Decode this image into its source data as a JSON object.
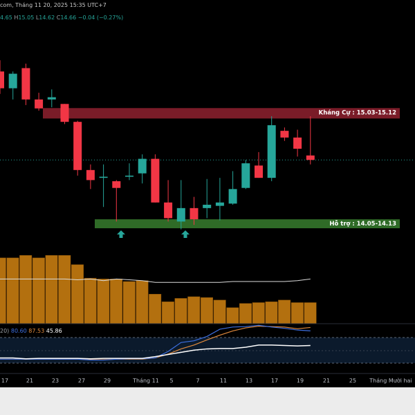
{
  "header": {
    "source_title": "com, Tháng 11 20, 2025 15:35 UTC+7",
    "ohlc": [
      {
        "text": "4.65",
        "color": "#26a69a"
      },
      {
        "text": "H",
        "color": "#9aa0a6"
      },
      {
        "text": "15.05",
        "color": "#26a69a"
      },
      {
        "text": "L",
        "color": "#9aa0a6"
      },
      {
        "text": "14.62",
        "color": "#26a69a"
      },
      {
        "text": "C",
        "color": "#9aa0a6"
      },
      {
        "text": "14.66",
        "color": "#26a69a"
      },
      {
        "text": "−0.04 (−0.27%)",
        "color": "#26a69a"
      }
    ]
  },
  "zones": {
    "resistance": {
      "label": "Kháng Cự : 15.03-15.12",
      "low": 15.03,
      "high": 15.12
    },
    "support": {
      "label": "Hỗ trợ : 14.05-14.13",
      "low": 14.05,
      "high": 14.13
    }
  },
  "current_price": 14.66,
  "indicator": {
    "legend": [
      {
        "text": "20)",
        "color": "#9aa0a6"
      },
      {
        "text": "80.60",
        "color": "#3d6fe0"
      },
      {
        "text": "87.53",
        "color": "#e08a3d"
      },
      {
        "text": "45.86",
        "color": "#ffffff"
      }
    ],
    "upper_band": 80,
    "lower_band": 20
  },
  "x_axis_labels": [
    "17",
    "21",
    "23",
    "27",
    "29",
    "Tháng 11",
    "5",
    "7",
    "11",
    "13",
    "17",
    "19",
    "21",
    "25",
    "Tháng Mười hai"
  ],
  "chart_data": {
    "type": "candlestick",
    "candles": [
      {
        "o": 15.45,
        "h": 15.55,
        "l": 15.25,
        "c": 15.3
      },
      {
        "o": 15.3,
        "h": 15.45,
        "l": 15.2,
        "c": 15.43
      },
      {
        "o": 15.48,
        "h": 15.52,
        "l": 15.15,
        "c": 15.2
      },
      {
        "o": 15.2,
        "h": 15.26,
        "l": 15.1,
        "c": 15.12
      },
      {
        "o": 15.2,
        "h": 15.29,
        "l": 15.13,
        "c": 15.22
      },
      {
        "o": 15.16,
        "h": 15.16,
        "l": 14.98,
        "c": 15.0
      },
      {
        "o": 15.0,
        "h": 15.01,
        "l": 14.52,
        "c": 14.57
      },
      {
        "o": 14.57,
        "h": 14.62,
        "l": 14.4,
        "c": 14.48
      },
      {
        "o": 14.5,
        "h": 14.62,
        "l": 14.24,
        "c": 14.51
      },
      {
        "o": 14.47,
        "h": 14.48,
        "l": 14.11,
        "c": 14.41
      },
      {
        "o": 14.51,
        "h": 14.63,
        "l": 14.48,
        "c": 14.52
      },
      {
        "o": 14.54,
        "h": 14.71,
        "l": 14.45,
        "c": 14.67
      },
      {
        "o": 14.67,
        "h": 14.71,
        "l": 14.28,
        "c": 14.28
      },
      {
        "o": 14.28,
        "h": 14.48,
        "l": 14.11,
        "c": 14.14
      },
      {
        "o": 14.11,
        "h": 14.48,
        "l": 14.04,
        "c": 14.23
      },
      {
        "o": 14.23,
        "h": 14.33,
        "l": 14.08,
        "c": 14.13
      },
      {
        "o": 14.23,
        "h": 14.49,
        "l": 14.14,
        "c": 14.26
      },
      {
        "o": 14.25,
        "h": 14.5,
        "l": 14.12,
        "c": 14.28
      },
      {
        "o": 14.27,
        "h": 14.56,
        "l": 14.26,
        "c": 14.4
      },
      {
        "o": 14.41,
        "h": 14.66,
        "l": 14.4,
        "c": 14.63
      },
      {
        "o": 14.61,
        "h": 14.73,
        "l": 14.5,
        "c": 14.5
      },
      {
        "o": 14.5,
        "h": 15.05,
        "l": 14.47,
        "c": 14.97
      },
      {
        "o": 14.92,
        "h": 14.95,
        "l": 14.83,
        "c": 14.86
      },
      {
        "o": 14.86,
        "h": 14.93,
        "l": 14.69,
        "c": 14.76
      },
      {
        "o": 14.7,
        "h": 15.05,
        "l": 14.62,
        "c": 14.66
      }
    ],
    "volume": [
      0.78,
      0.78,
      0.81,
      0.78,
      0.81,
      0.81,
      0.7,
      0.54,
      0.53,
      0.53,
      0.5,
      0.51,
      0.35,
      0.26,
      0.3,
      0.32,
      0.31,
      0.28,
      0.19,
      0.24,
      0.25,
      0.26,
      0.28,
      0.25,
      0.25
    ],
    "volume_ma": [
      0.53,
      0.53,
      0.53,
      0.53,
      0.53,
      0.53,
      0.52,
      0.53,
      0.51,
      0.53,
      0.52,
      0.51,
      0.49,
      0.49,
      0.49,
      0.49,
      0.49,
      0.49,
      0.5,
      0.5,
      0.5,
      0.5,
      0.5,
      0.51,
      0.53
    ],
    "indicator_k": [
      14,
      14,
      14,
      14,
      14,
      14,
      14,
      12,
      12,
      14,
      15,
      15,
      17,
      32,
      53,
      57,
      67,
      84,
      89,
      90,
      93,
      89,
      86,
      82,
      80
    ],
    "indicator_d": [
      14,
      14,
      14,
      14,
      14,
      14,
      14,
      13,
      13,
      14,
      14,
      14,
      17,
      26,
      38,
      47,
      59,
      70,
      80,
      87,
      91,
      90,
      89,
      85,
      88
    ],
    "indicator_line3": [
      17,
      17,
      15,
      16,
      16,
      16,
      16,
      15,
      16,
      16,
      16,
      16,
      20,
      25,
      30,
      35,
      38,
      39,
      39,
      42,
      47,
      47,
      46,
      45,
      46
    ]
  }
}
